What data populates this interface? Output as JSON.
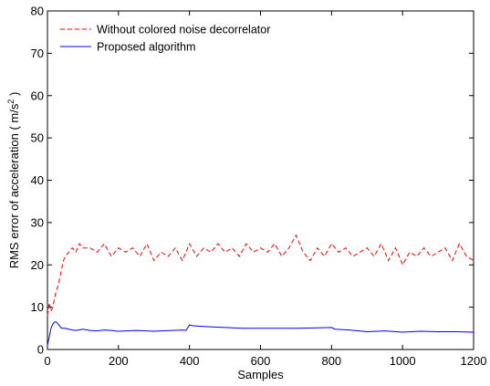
{
  "chart_data": {
    "type": "line",
    "xlabel": "Samples",
    "ylabel": {
      "prefix": "RMS error of acceleration ( m/s",
      "sup": "2",
      "suffix": " )"
    },
    "xlim": [
      0,
      1200
    ],
    "ylim": [
      0,
      80
    ],
    "xticks": [
      0,
      200,
      400,
      600,
      800,
      1000,
      1200
    ],
    "yticks": [
      0,
      10,
      20,
      30,
      40,
      50,
      60,
      70,
      80
    ],
    "grid": false,
    "legend_position": "top-left",
    "series": [
      {
        "name": "Without colored noise decorrelator",
        "color": "#ff0000",
        "style": "dashed",
        "x": [
          0,
          5,
          10,
          15,
          20,
          25,
          30,
          35,
          40,
          45,
          50,
          60,
          70,
          80,
          90,
          100,
          120,
          140,
          160,
          180,
          200,
          220,
          240,
          260,
          280,
          300,
          320,
          340,
          360,
          380,
          400,
          420,
          440,
          460,
          480,
          500,
          520,
          540,
          560,
          580,
          600,
          620,
          640,
          660,
          680,
          700,
          720,
          740,
          760,
          780,
          800,
          820,
          840,
          860,
          880,
          900,
          920,
          940,
          960,
          980,
          1000,
          1020,
          1040,
          1060,
          1080,
          1100,
          1120,
          1140,
          1160,
          1180,
          1200
        ],
        "y": [
          8,
          11,
          9,
          10,
          12,
          14,
          15,
          17,
          19,
          21,
          22,
          23,
          24,
          23,
          25,
          24,
          24,
          23,
          25,
          22,
          24,
          23,
          24,
          22,
          25,
          21,
          23,
          22,
          24,
          21,
          25,
          22,
          24,
          23,
          25,
          23,
          24,
          22,
          25,
          23,
          24,
          23,
          25,
          22,
          24,
          27,
          23,
          21,
          24,
          22,
          25,
          23,
          24,
          22,
          23,
          24,
          22,
          25,
          21,
          24,
          20,
          23,
          22,
          24,
          22,
          23,
          24,
          21,
          25,
          22,
          21
        ]
      },
      {
        "name": "Proposed algorithm",
        "color": "#0000ff",
        "style": "solid",
        "x": [
          0,
          5,
          10,
          15,
          20,
          25,
          30,
          35,
          40,
          50,
          60,
          70,
          80,
          100,
          120,
          140,
          160,
          180,
          200,
          250,
          300,
          350,
          380,
          390,
          400,
          410,
          450,
          500,
          550,
          600,
          650,
          700,
          750,
          800,
          810,
          850,
          900,
          950,
          1000,
          1050,
          1100,
          1150,
          1200
        ],
        "y": [
          1,
          3,
          5,
          6,
          6.5,
          6.5,
          6,
          5.5,
          5,
          5,
          4.8,
          4.6,
          4.5,
          4.8,
          4.5,
          4.4,
          4.6,
          4.5,
          4.3,
          4.5,
          4.3,
          4.5,
          4.6,
          4.5,
          5.8,
          5.6,
          5.4,
          5.2,
          5,
          5,
          5,
          5,
          5.1,
          5.2,
          4.8,
          4.6,
          4.2,
          4.4,
          4.1,
          4.3,
          4.2,
          4.2,
          4.1
        ]
      }
    ]
  }
}
